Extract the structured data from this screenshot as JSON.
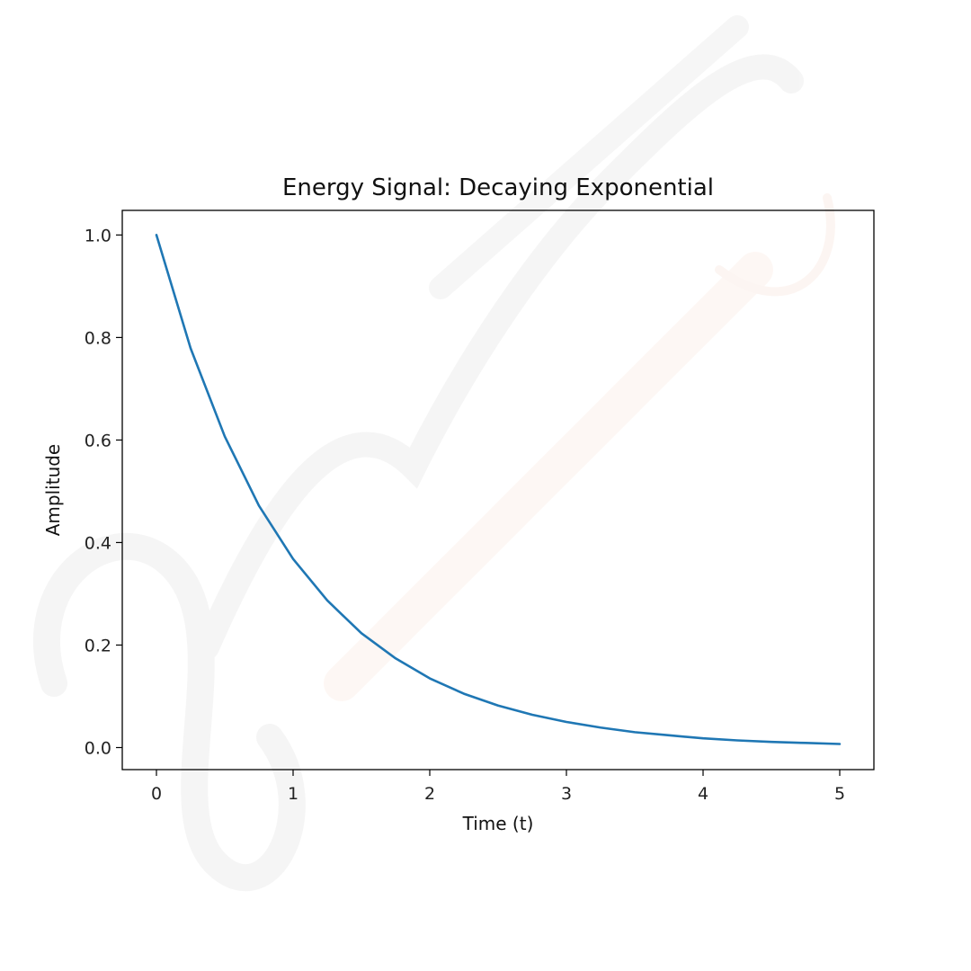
{
  "chart_data": {
    "type": "line",
    "title": "Energy Signal: Decaying Exponential",
    "xlabel": "Time (t)",
    "ylabel": "Amplitude",
    "xlim": [
      -0.25,
      5.25
    ],
    "ylim": [
      -0.043,
      1.048
    ],
    "x_ticks": [
      0,
      1,
      2,
      3,
      4,
      5
    ],
    "x_tick_labels": [
      "0",
      "1",
      "2",
      "3",
      "4",
      "5"
    ],
    "y_ticks": [
      0.0,
      0.2,
      0.4,
      0.6,
      0.8,
      1.0
    ],
    "y_tick_labels": [
      "0.0",
      "0.2",
      "0.4",
      "0.6",
      "0.8",
      "1.0"
    ],
    "grid": false,
    "series": [
      {
        "color": "#1f77b4",
        "x": [
          0,
          0.25,
          0.5,
          0.75,
          1,
          1.25,
          1.5,
          1.75,
          2,
          2.25,
          2.5,
          2.75,
          3,
          3.25,
          3.5,
          3.75,
          4,
          4.25,
          4.5,
          4.75,
          5
        ],
        "y": [
          1.0,
          0.779,
          0.607,
          0.472,
          0.368,
          0.287,
          0.223,
          0.174,
          0.135,
          0.105,
          0.082,
          0.064,
          0.05,
          0.039,
          0.03,
          0.024,
          0.018,
          0.014,
          0.011,
          0.009,
          0.007
        ]
      }
    ]
  }
}
